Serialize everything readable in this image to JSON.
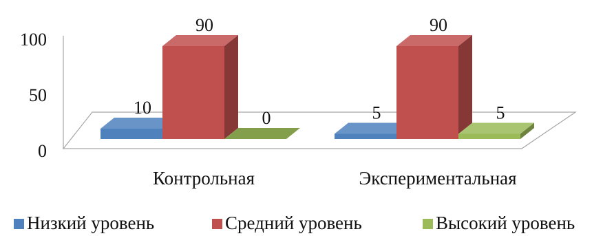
{
  "chart_data": {
    "type": "bar",
    "title": "",
    "xlabel": "",
    "ylabel": "",
    "ylim": [
      0,
      100
    ],
    "yticks": [
      0,
      50,
      100
    ],
    "grid": false,
    "legend_position": "bottom",
    "categories": [
      "Контрольная",
      "Экспериментальная"
    ],
    "series": [
      {
        "name": "Низкий уровень",
        "values": [
          10,
          5
        ],
        "color": "#4F81BD"
      },
      {
        "name": "Средний уровень",
        "values": [
          90,
          90
        ],
        "color": "#C0504D"
      },
      {
        "name": "Высокий уровень",
        "values": [
          0,
          5
        ],
        "color": "#9BBB59"
      }
    ]
  }
}
